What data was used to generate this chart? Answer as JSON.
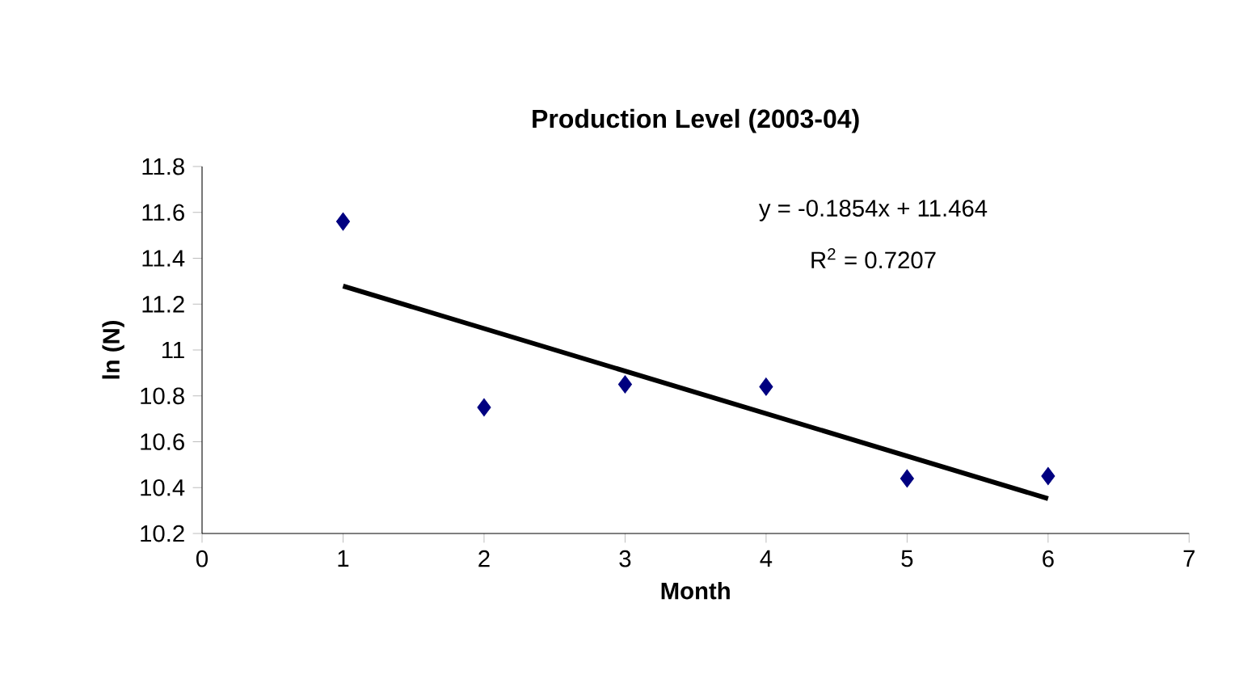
{
  "chart_data": {
    "type": "scatter",
    "title": "Production Level (2003-04)",
    "xlabel": "Month",
    "ylabel": "ln (N)",
    "x": [
      1,
      2,
      3,
      4,
      5,
      6
    ],
    "series": [
      {
        "color": "#000080",
        "values": [
          11.56,
          10.75,
          10.85,
          10.84,
          10.44,
          10.45
        ],
        "marker": "diamond"
      },
      {
        "type": "line",
        "color": "#000000",
        "x": [
          1,
          6
        ],
        "values": [
          11.279,
          10.352
        ],
        "marker": "none",
        "line_style": "solid"
      }
    ],
    "annotations": [
      "y = -0.1854x + 11.464",
      "R$^{2}$ = 0.7207"
    ],
    "xlim": [
      0,
      7
    ],
    "xticks": [
      0,
      1,
      2,
      3,
      4,
      5,
      6,
      7
    ],
    "ylim": [
      10.2,
      11.8
    ],
    "yticks": [
      10.2,
      10.4,
      10.6,
      10.8,
      11,
      11.2,
      11.4,
      11.6,
      11.8
    ],
    "grid": false
  }
}
